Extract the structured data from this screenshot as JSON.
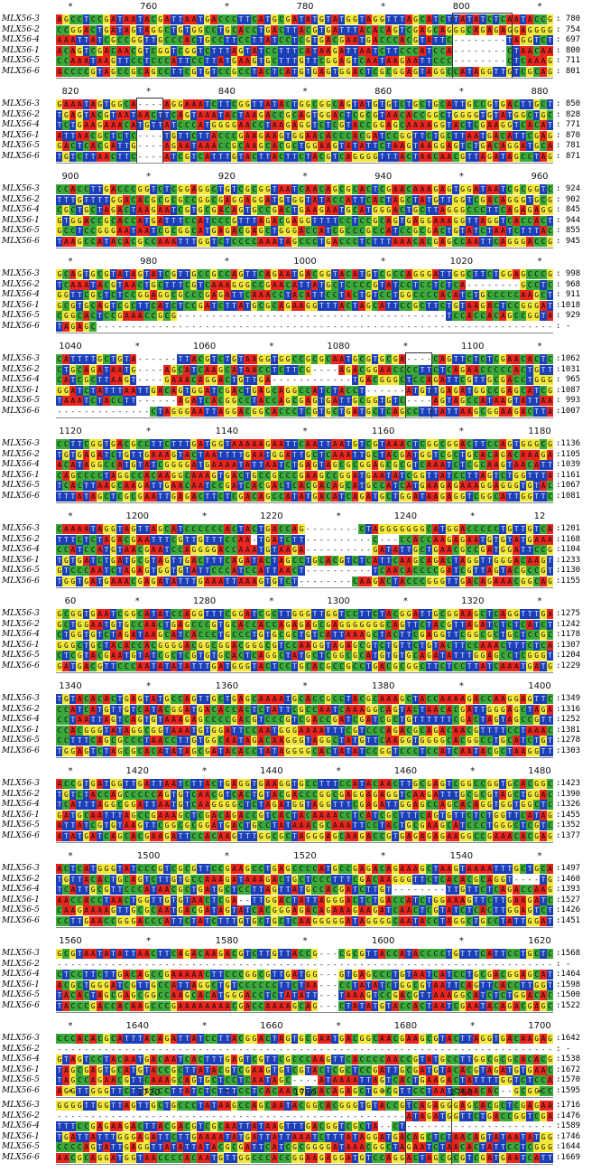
{
  "palette": {
    "A": "#e8251f",
    "T": "#1c3fb8",
    "G": "#f3e83a",
    "C": "#3aa83a",
    "-": "#ffffff"
  },
  "blocks": [
    {
      "ruler": [
        "*",
        "760",
        "*",
        "780",
        "*",
        "800",
        "*"
      ],
      "rows": [
        {
          "name": "MLX56-3",
          "end": ": 780"
        },
        {
          "name": "MLX56-2",
          "end": ": 754"
        },
        {
          "name": "MLX56-4",
          "end": ": 697"
        },
        {
          "name": "MLX56-1",
          "end": ": 800"
        },
        {
          "name": "MLX56-5",
          "end": ": 711"
        },
        {
          "name": "MLX56-6",
          "end": ": 801"
        }
      ]
    },
    {
      "ruler": [
        "820",
        "*",
        "840",
        "*",
        "860",
        "*",
        "880"
      ],
      "rows": [
        {
          "name": "MLX56-3",
          "end": ": 850"
        },
        {
          "name": "MLX56-2",
          "end": ": 828"
        },
        {
          "name": "MLX56-4",
          "end": ": 771"
        },
        {
          "name": "MLX56-1",
          "end": ": 870"
        },
        {
          "name": "MLX56-5",
          "end": ": 781"
        },
        {
          "name": "MLX56-6",
          "end": ": 871"
        }
      ]
    },
    {
      "ruler": [
        "900",
        "*",
        "920",
        "*",
        "940",
        "*",
        "960"
      ],
      "rows": [
        {
          "name": "MLX56-3",
          "end": ": 924"
        },
        {
          "name": "MLX56-2",
          "end": ": 902"
        },
        {
          "name": "MLX56-4",
          "end": ": 845"
        },
        {
          "name": "MLX56-1",
          "end": ": 944"
        },
        {
          "name": "MLX56-5",
          "end": ": 855"
        },
        {
          "name": "MLX56-6",
          "end": ": 945"
        }
      ]
    },
    {
      "ruler": [
        "*",
        "980",
        "*",
        "1000",
        "*",
        "1020",
        "*"
      ],
      "rows": [
        {
          "name": "MLX56-3",
          "end": ": 998"
        },
        {
          "name": "MLX56-2",
          "end": ": 968"
        },
        {
          "name": "MLX56-4",
          "end": ": 911"
        },
        {
          "name": "MLX56-1",
          "end": ":1018"
        },
        {
          "name": "MLX56-5",
          "end": ": 929"
        },
        {
          "name": "MLX56-6",
          "end": ": -"
        }
      ]
    },
    {
      "ruler": [
        "1040",
        "*",
        "1060",
        "*",
        "1080",
        "*",
        "1100",
        "*"
      ],
      "rows": [
        {
          "name": "MLX56-3",
          "end": ":1062"
        },
        {
          "name": "MLX56-2",
          "end": ":1031"
        },
        {
          "name": "MLX56-4",
          "end": ": 965"
        },
        {
          "name": "MLX56-1",
          "end": ":1087"
        },
        {
          "name": "MLX56-5",
          "end": ": 993"
        },
        {
          "name": "MLX56-6",
          "end": ":1007"
        }
      ]
    },
    {
      "ruler": [
        "1120",
        "*",
        "1140",
        "*",
        "1160",
        "*",
        "1180"
      ],
      "rows": [
        {
          "name": "MLX56-3",
          "end": ":1136"
        },
        {
          "name": "MLX56-2",
          "end": ":1105"
        },
        {
          "name": "MLX56-4",
          "end": ":1039"
        },
        {
          "name": "MLX56-1",
          "end": ":1161"
        },
        {
          "name": "MLX56-5",
          "end": ":1067"
        },
        {
          "name": "MLX56-6",
          "end": ":1081"
        }
      ]
    },
    {
      "ruler": [
        "*",
        "1200",
        "*",
        "1220",
        "*",
        "1240",
        "*",
        "12"
      ],
      "rows": [
        {
          "name": "MLX56-3",
          "end": ":1201"
        },
        {
          "name": "MLX56-2",
          "end": ":1168"
        },
        {
          "name": "MLX56-4",
          "end": ":1104"
        },
        {
          "name": "MLX56-1",
          "end": ":1233"
        },
        {
          "name": "MLX56-5",
          "end": ":1130"
        },
        {
          "name": "MLX56-6",
          "end": ":1155"
        }
      ]
    },
    {
      "ruler": [
        "60",
        "*",
        "1280",
        "*",
        "1300",
        "*",
        "1320",
        "*"
      ],
      "rows": [
        {
          "name": "MLX56-3",
          "end": ":1275"
        },
        {
          "name": "MLX56-2",
          "end": ":1242"
        },
        {
          "name": "MLX56-4",
          "end": ":1178"
        },
        {
          "name": "MLX56-1",
          "end": ":1307"
        },
        {
          "name": "MLX56-5",
          "end": ":1204"
        },
        {
          "name": "MLX56-6",
          "end": ":1229"
        }
      ]
    },
    {
      "ruler": [
        "1340",
        "*",
        "1360",
        "*",
        "1380",
        "*",
        "1400"
      ],
      "rows": [
        {
          "name": "MLX56-3",
          "end": ":1349"
        },
        {
          "name": "MLX56-2",
          "end": ":1316"
        },
        {
          "name": "MLX56-4",
          "end": ":1252"
        },
        {
          "name": "MLX56-1",
          "end": ":1381"
        },
        {
          "name": "MLX56-5",
          "end": ":1278"
        },
        {
          "name": "MLX56-6",
          "end": ":1303"
        }
      ]
    },
    {
      "ruler": [
        "*",
        "1420",
        "*",
        "1440",
        "*",
        "1460",
        "*",
        "1480"
      ],
      "rows": [
        {
          "name": "MLX56-3",
          "end": ":1423"
        },
        {
          "name": "MLX56-2",
          "end": ":1390"
        },
        {
          "name": "MLX56-4",
          "end": ":1326"
        },
        {
          "name": "MLX56-1",
          "end": ":1455"
        },
        {
          "name": "MLX56-5",
          "end": ":1352"
        },
        {
          "name": "MLX56-6",
          "end": ":1377"
        }
      ]
    },
    {
      "ruler": [
        "*",
        "1500",
        "*",
        "1520",
        "*",
        "1540",
        "*"
      ],
      "rows": [
        {
          "name": "MLX56-3",
          "end": ":1497"
        },
        {
          "name": "MLX56-2",
          "end": ":1460"
        },
        {
          "name": "MLX56-4",
          "end": ":1393"
        },
        {
          "name": "MLX56-1",
          "end": ":1527"
        },
        {
          "name": "MLX56-5",
          "end": ":1426"
        },
        {
          "name": "MLX56-6",
          "end": ":1451"
        }
      ]
    },
    {
      "ruler": [
        "1560",
        "*",
        "1580",
        "*",
        "1600",
        "*",
        "1620"
      ],
      "rows": [
        {
          "name": "MLX56-3",
          "end": ":1568"
        },
        {
          "name": "MLX56-2",
          "end": ": -"
        },
        {
          "name": "MLX56-4",
          "end": ":1464"
        },
        {
          "name": "MLX56-1",
          "end": ":1598"
        },
        {
          "name": "MLX56-5",
          "end": ":1500"
        },
        {
          "name": "MLX56-6",
          "end": ":1522"
        }
      ]
    },
    {
      "ruler": [
        "*",
        "1640",
        "*",
        "1660",
        "*",
        "1680",
        "*",
        "1700"
      ],
      "rows": [
        {
          "name": "MLX56-3",
          "end": ":1642"
        },
        {
          "name": "MLX56-2",
          "end": ": -"
        },
        {
          "name": "MLX56-4",
          "end": ":1538"
        },
        {
          "name": "MLX56-1",
          "end": ":1672"
        },
        {
          "name": "MLX56-5",
          "end": ":1570"
        },
        {
          "name": "MLX56-6",
          "end": ":1595"
        }
      ]
    },
    {
      "ruler": [
        "*",
        "1720",
        "*",
        "1740",
        "*",
        "1760",
        "*"
      ],
      "rows": [
        {
          "name": "MLX56-3",
          "end": ":1716"
        },
        {
          "name": "MLX56-2",
          "end": ":1476"
        },
        {
          "name": "MLX56-4",
          "end": ":1589"
        },
        {
          "name": "MLX56-1",
          "end": ":1746"
        },
        {
          "name": "MLX56-5",
          "end": ":1644"
        },
        {
          "name": "MLX56-6",
          "end": ":1669"
        }
      ]
    }
  ]
}
